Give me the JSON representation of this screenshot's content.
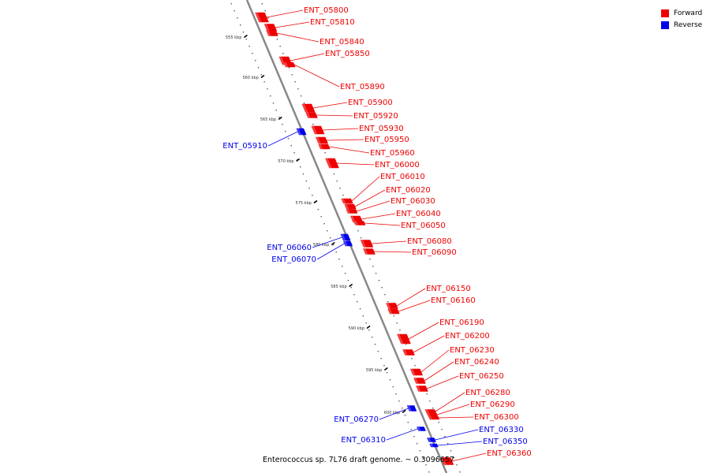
{
  "caption": "Enterococcus sp. 7L76 draft genome. ~ 0.3096657",
  "legend": [
    {
      "label": "Forward",
      "color": "#ee0000"
    },
    {
      "label": "Reverse",
      "color": "#0000ee"
    }
  ],
  "scale_ticks": [
    "555 kbp",
    "560 kbp",
    "565 kbp",
    "570 kbp",
    "575 kbp",
    "580 kbp",
    "585 kbp",
    "590 kbp",
    "595 kbp",
    "600 kbp"
  ],
  "genes": [
    {
      "name": "ENT_05800",
      "strand": "forward"
    },
    {
      "name": "ENT_05810",
      "strand": "forward"
    },
    {
      "name": "ENT_05840",
      "strand": "forward"
    },
    {
      "name": "ENT_05850",
      "strand": "forward"
    },
    {
      "name": "ENT_05890",
      "strand": "forward"
    },
    {
      "name": "ENT_05900",
      "strand": "forward"
    },
    {
      "name": "ENT_05920",
      "strand": "forward"
    },
    {
      "name": "ENT_05930",
      "strand": "forward"
    },
    {
      "name": "ENT_05910",
      "strand": "reverse"
    },
    {
      "name": "ENT_05950",
      "strand": "forward"
    },
    {
      "name": "ENT_05960",
      "strand": "forward"
    },
    {
      "name": "ENT_06000",
      "strand": "forward"
    },
    {
      "name": "ENT_06010",
      "strand": "forward"
    },
    {
      "name": "ENT_06020",
      "strand": "forward"
    },
    {
      "name": "ENT_06030",
      "strand": "forward"
    },
    {
      "name": "ENT_06040",
      "strand": "forward"
    },
    {
      "name": "ENT_06050",
      "strand": "forward"
    },
    {
      "name": "ENT_06080",
      "strand": "forward"
    },
    {
      "name": "ENT_06060",
      "strand": "reverse"
    },
    {
      "name": "ENT_06090",
      "strand": "forward"
    },
    {
      "name": "ENT_06070",
      "strand": "reverse"
    },
    {
      "name": "ENT_06150",
      "strand": "forward"
    },
    {
      "name": "ENT_06160",
      "strand": "forward"
    },
    {
      "name": "ENT_06190",
      "strand": "forward"
    },
    {
      "name": "ENT_06200",
      "strand": "forward"
    },
    {
      "name": "ENT_06230",
      "strand": "forward"
    },
    {
      "name": "ENT_06240",
      "strand": "forward"
    },
    {
      "name": "ENT_06250",
      "strand": "forward"
    },
    {
      "name": "ENT_06280",
      "strand": "forward"
    },
    {
      "name": "ENT_06290",
      "strand": "forward"
    },
    {
      "name": "ENT_06300",
      "strand": "forward"
    },
    {
      "name": "ENT_06270",
      "strand": "reverse"
    },
    {
      "name": "ENT_06330",
      "strand": "reverse"
    },
    {
      "name": "ENT_06350",
      "strand": "reverse"
    },
    {
      "name": "ENT_06310",
      "strand": "reverse"
    },
    {
      "name": "ENT_06360",
      "strand": "forward"
    }
  ]
}
